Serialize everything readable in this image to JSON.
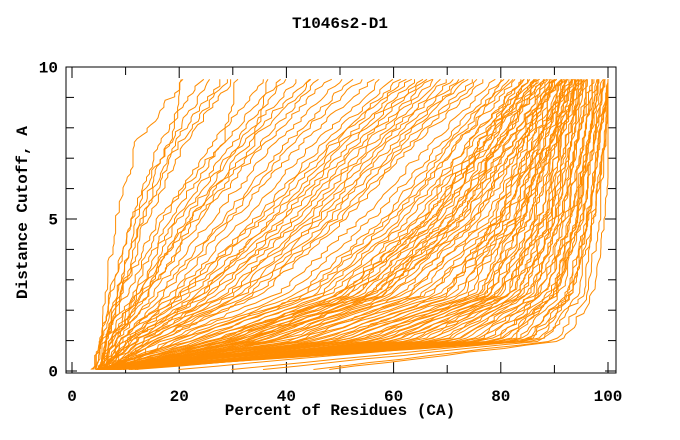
{
  "chart_data": {
    "type": "line",
    "title": "T1046s2-D1",
    "xlabel": "Percent of Residues (CA)",
    "ylabel": "Distance Cutoff, A",
    "xlim": [
      0,
      100
    ],
    "ylim": [
      0,
      10
    ],
    "x_ticks": [
      0,
      20,
      40,
      60,
      80,
      100
    ],
    "x_minor_step": 10,
    "y_ticks": [
      0,
      5,
      10
    ],
    "y_minor_step": 1,
    "grid": false,
    "legend": "none",
    "line_color": "#ff8c00",
    "axis_color": "#000000",
    "background": "#ffffff",
    "description": "Cumulative distance-cutoff curves (percent of CA residues under each cutoff) for many structure models; each curve is one model.",
    "curve_y_anchors": [
      0.05,
      1,
      2.5,
      5,
      7.5,
      9.6
    ],
    "curves": [
      [
        4,
        6,
        9,
        14,
        21,
        30
      ],
      [
        5,
        6,
        8,
        13,
        19,
        28
      ],
      [
        4,
        5,
        8,
        12,
        18,
        26
      ],
      [
        5,
        6,
        9,
        13,
        20,
        29
      ],
      [
        4,
        5,
        7,
        11,
        16,
        24
      ],
      [
        5,
        6,
        9,
        16,
        28,
        30.5
      ],
      [
        4,
        5,
        7,
        11,
        18,
        20.5
      ],
      [
        4,
        5,
        6,
        8,
        12,
        21
      ],
      [
        5,
        8,
        16,
        28,
        40,
        52
      ],
      [
        6,
        8,
        15,
        26,
        38,
        50
      ],
      [
        5,
        7,
        14,
        24,
        36,
        48
      ],
      [
        7,
        9,
        17,
        29,
        41,
        54
      ],
      [
        5,
        7,
        13,
        22,
        33,
        45
      ],
      [
        6,
        8,
        14,
        23,
        35,
        46
      ],
      [
        5,
        6,
        12,
        20,
        31,
        42
      ],
      [
        7,
        8,
        13,
        21,
        32,
        44
      ],
      [
        5,
        6,
        11,
        18,
        28,
        39
      ],
      [
        6,
        7,
        12,
        19,
        30,
        40
      ],
      [
        5,
        6,
        10,
        17,
        26,
        36
      ],
      [
        5,
        7,
        12,
        22,
        34,
        36
      ],
      [
        6,
        16,
        34,
        50,
        63,
        76
      ],
      [
        5,
        15,
        32,
        48,
        61,
        74
      ],
      [
        7,
        14,
        30,
        46,
        59,
        72
      ],
      [
        6,
        13,
        28,
        44,
        57,
        70
      ],
      [
        8,
        15,
        33,
        49,
        62,
        75
      ],
      [
        5,
        12,
        26,
        42,
        55,
        68
      ],
      [
        7,
        13,
        29,
        45,
        58,
        71
      ],
      [
        6,
        11,
        24,
        40,
        53,
        66
      ],
      [
        5,
        12,
        27,
        43,
        56,
        69
      ],
      [
        9,
        16,
        35,
        51,
        64,
        77
      ],
      [
        6,
        10,
        22,
        38,
        51,
        64
      ],
      [
        7,
        11,
        25,
        41,
        54,
        67
      ],
      [
        5,
        10,
        21,
        36,
        49,
        62
      ],
      [
        8,
        14,
        31,
        47,
        60,
        73
      ],
      [
        6,
        9,
        20,
        34,
        47,
        60
      ],
      [
        5,
        11,
        23,
        39,
        52,
        65
      ],
      [
        7,
        9,
        19,
        32,
        45,
        58
      ],
      [
        6,
        10,
        20,
        35,
        48,
        61
      ],
      [
        5,
        9,
        18,
        30,
        43,
        56
      ],
      [
        8,
        12,
        24,
        37,
        50,
        63
      ],
      [
        6,
        44,
        68,
        82,
        89,
        95
      ],
      [
        5,
        40,
        65,
        80,
        87,
        93
      ],
      [
        7,
        38,
        62,
        78,
        86,
        92
      ],
      [
        6,
        36,
        60,
        76,
        84,
        91
      ],
      [
        8,
        34,
        58,
        74,
        83,
        90
      ],
      [
        5,
        32,
        56,
        72,
        81,
        89
      ],
      [
        7,
        30,
        54,
        70,
        80,
        88
      ],
      [
        6,
        42,
        64,
        79,
        86,
        93
      ],
      [
        5,
        28,
        52,
        68,
        78,
        87
      ],
      [
        9,
        26,
        50,
        66,
        77,
        86
      ],
      [
        6,
        24,
        48,
        64,
        75,
        85
      ],
      [
        7,
        35,
        57,
        73,
        82,
        90
      ],
      [
        5,
        22,
        46,
        62,
        74,
        84
      ],
      [
        8,
        31,
        53,
        69,
        79,
        87
      ],
      [
        6,
        20,
        44,
        60,
        72,
        83
      ],
      [
        5,
        27,
        49,
        65,
        76,
        85
      ],
      [
        7,
        19,
        42,
        58,
        70,
        81
      ],
      [
        6,
        25,
        47,
        63,
        74,
        84
      ],
      [
        9,
        18,
        40,
        56,
        69,
        80
      ],
      [
        5,
        23,
        45,
        61,
        72,
        82
      ],
      [
        7,
        33,
        55,
        71,
        80,
        88
      ],
      [
        6,
        17,
        38,
        54,
        67,
        79
      ],
      [
        8,
        29,
        51,
        67,
        77,
        86
      ],
      [
        5,
        21,
        43,
        59,
        71,
        81
      ],
      [
        12,
        37,
        59,
        75,
        83,
        91
      ],
      [
        6,
        39,
        63,
        77,
        85,
        92
      ],
      [
        5,
        37,
        61,
        75,
        84,
        90
      ],
      [
        7,
        41,
        66,
        81,
        88,
        94
      ],
      [
        6,
        43,
        67,
        80,
        87,
        93
      ],
      [
        8,
        46,
        69,
        83,
        89,
        95
      ],
      [
        5,
        48,
        71,
        84,
        90,
        96
      ],
      [
        6,
        33,
        57,
        72,
        81,
        89
      ],
      [
        7,
        29,
        53,
        68,
        78,
        86
      ],
      [
        5,
        26,
        51,
        67,
        77,
        85
      ],
      [
        6,
        31,
        55,
        70,
        79,
        88
      ],
      [
        48,
        92,
        97,
        99,
        100,
        100
      ],
      [
        36,
        88,
        95,
        97,
        99,
        100
      ],
      [
        6,
        28,
        50,
        66,
        76,
        84
      ],
      [
        5,
        34,
        58,
        73,
        82,
        90
      ],
      [
        7,
        32,
        56,
        71,
        80,
        87
      ],
      [
        6,
        88,
        94,
        97,
        99,
        100
      ],
      [
        7,
        85,
        92,
        96,
        98,
        100
      ],
      [
        5,
        83,
        91,
        95,
        97,
        99
      ],
      [
        8,
        86,
        93,
        96,
        98,
        100
      ],
      [
        6,
        80,
        90,
        94,
        97,
        99
      ],
      [
        9,
        78,
        89,
        94,
        96,
        98
      ],
      [
        5,
        76,
        88,
        93,
        96,
        99
      ],
      [
        7,
        82,
        90,
        95,
        97,
        100
      ],
      [
        6,
        74,
        87,
        92,
        95,
        98
      ],
      [
        8,
        72,
        86,
        92,
        95,
        97
      ],
      [
        10,
        84,
        92,
        96,
        98,
        100
      ],
      [
        5,
        70,
        85,
        91,
        94,
        97
      ],
      [
        7,
        68,
        84,
        90,
        94,
        96
      ],
      [
        6,
        87,
        93,
        97,
        99,
        100
      ],
      [
        9,
        66,
        83,
        90,
        93,
        96
      ],
      [
        5,
        64,
        82,
        89,
        93,
        95
      ],
      [
        7,
        79,
        89,
        94,
        96,
        98
      ],
      [
        6,
        62,
        81,
        88,
        92,
        95
      ],
      [
        8,
        75,
        87,
        93,
        95,
        97
      ],
      [
        5,
        60,
        80,
        88,
        91,
        94
      ],
      [
        11,
        81,
        90,
        95,
        97,
        99
      ],
      [
        6,
        58,
        79,
        87,
        91,
        94
      ],
      [
        7,
        71,
        85,
        91,
        94,
        96
      ],
      [
        5,
        56,
        78,
        86,
        90,
        93
      ],
      [
        9,
        69,
        84,
        90,
        93,
        95
      ],
      [
        6,
        54,
        77,
        85,
        89,
        93
      ],
      [
        12,
        77,
        88,
        93,
        96,
        98
      ],
      [
        5,
        52,
        76,
        84,
        89,
        92
      ],
      [
        7,
        65,
        82,
        89,
        92,
        95
      ],
      [
        6,
        50,
        75,
        83,
        88,
        92
      ],
      [
        8,
        63,
        81,
        88,
        91,
        94
      ],
      [
        30,
        85,
        93,
        96,
        98,
        100
      ],
      [
        45,
        90,
        96,
        98,
        99,
        100
      ],
      [
        6,
        61,
        80,
        87,
        91,
        94
      ],
      [
        7,
        59,
        79,
        86,
        90,
        93
      ],
      [
        5,
        57,
        78,
        85,
        89,
        92
      ],
      [
        20,
        80,
        90,
        94,
        96,
        98
      ],
      [
        6,
        55,
        77,
        84,
        88,
        91
      ],
      [
        8,
        67,
        83,
        89,
        92,
        95
      ],
      [
        5,
        53,
        76,
        83,
        87,
        91
      ],
      [
        7,
        51,
        74,
        82,
        87,
        90
      ],
      [
        6,
        73,
        86,
        91,
        94,
        97
      ],
      [
        9,
        49,
        73,
        81,
        86,
        90
      ],
      [
        5,
        47,
        72,
        80,
        85,
        89
      ],
      [
        7,
        45,
        70,
        79,
        84,
        88
      ]
    ]
  }
}
